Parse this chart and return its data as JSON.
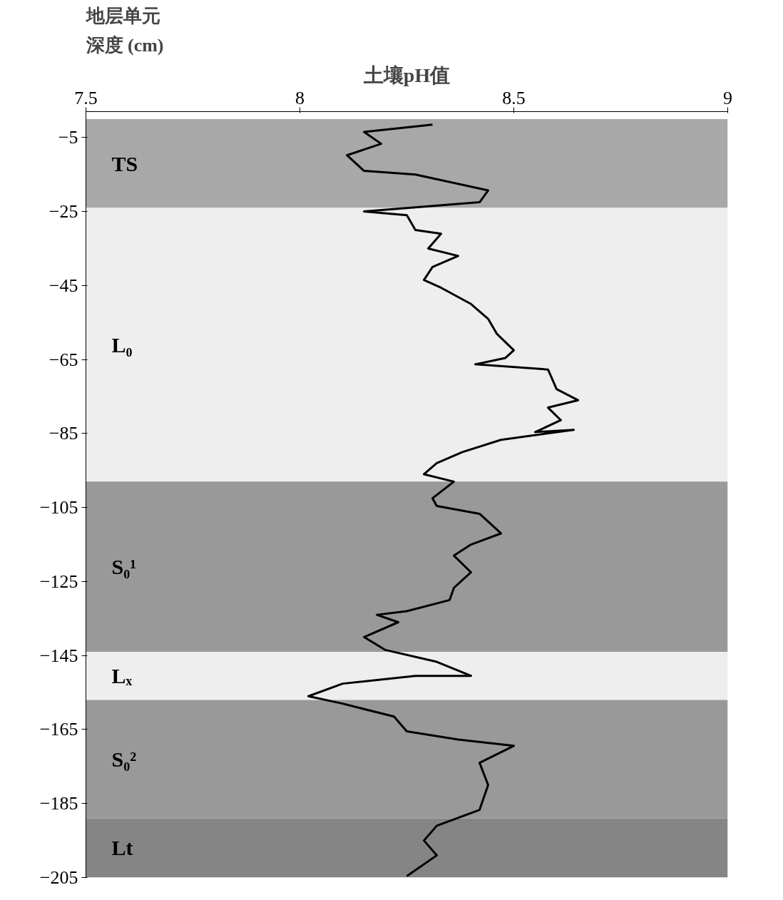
{
  "chart_data": {
    "type": "line",
    "title": "土壤pH值",
    "ylabel": "深度 (cm)",
    "annotations": [
      "地层单元"
    ],
    "xlim": [
      7.5,
      9
    ],
    "xticks": [
      7.5,
      8,
      8.5,
      9
    ],
    "ylim": [
      -205,
      2
    ],
    "yticks": [
      -5,
      -25,
      -45,
      -65,
      -85,
      -105,
      -125,
      -145,
      -165,
      -185,
      -205
    ],
    "grid": false,
    "bands": [
      {
        "axis": "y",
        "from": 0,
        "to": -24,
        "label": "TS",
        "color": "#a8a8a8"
      },
      {
        "axis": "y",
        "from": -24,
        "to": -98,
        "label": "L₀",
        "color": "#eeeeee"
      },
      {
        "axis": "y",
        "from": -98,
        "to": -144,
        "label": "S₀¹",
        "color": "#999999"
      },
      {
        "axis": "y",
        "from": -144,
        "to": -157,
        "label": "Lₓ",
        "color": "#eeeeee"
      },
      {
        "axis": "y",
        "from": -157,
        "to": -189,
        "label": "S₀²",
        "color": "#999999"
      },
      {
        "axis": "y",
        "from": -189,
        "to": -205,
        "label": "Lt",
        "color": "#858585"
      }
    ],
    "series": [
      {
        "color": "#000000",
        "x": [
          8.31,
          8.15,
          8.19,
          8.11,
          8.15,
          8.27,
          8.44,
          8.42,
          8.15,
          8.25,
          8.27,
          8.33,
          8.3,
          8.37,
          8.31,
          8.29,
          8.33,
          8.4,
          8.44,
          8.46,
          8.5,
          8.48,
          8.41,
          8.58,
          8.6,
          8.65,
          8.58,
          8.61,
          8.55,
          8.64,
          8.47,
          8.38,
          8.32,
          8.29,
          8.36,
          8.31,
          8.32,
          8.42,
          8.47,
          8.4,
          8.36,
          8.4,
          8.36,
          8.35,
          8.25,
          8.18,
          8.23,
          8.15,
          8.2,
          8.32,
          8.4,
          8.27,
          8.1,
          8.02,
          8.1,
          8.22,
          8.25,
          8.37,
          8.5,
          8.42,
          8.44,
          8.42,
          8.32,
          8.29,
          8.32,
          8.25
        ],
        "values": [
          -1.5,
          -3.5,
          -6.7,
          -9.8,
          -14,
          -15,
          -19.3,
          -22.5,
          -25,
          -26,
          -30,
          -31,
          -35,
          -37,
          -40,
          -43.5,
          -45.6,
          -50,
          -54,
          -58,
          -62.5,
          -64.6,
          -66.3,
          -67.7,
          -73,
          -76,
          -78,
          -81.4,
          -84.6,
          -84,
          -86.7,
          -90,
          -93,
          -96,
          -98,
          -102.5,
          -104.6,
          -106.7,
          -112,
          -115,
          -118,
          -122.5,
          -126.7,
          -130,
          -133,
          -134,
          -136,
          -140,
          -143.5,
          -146.7,
          -150.5,
          -150.5,
          -152.6,
          -156,
          -158,
          -161.5,
          -165.5,
          -167.7,
          -169.4,
          -174,
          -180,
          -186.7,
          -191,
          -195,
          -199,
          -204.6
        ]
      }
    ]
  }
}
